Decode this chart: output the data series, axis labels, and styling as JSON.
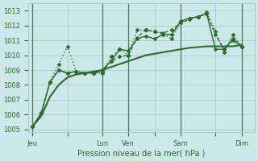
{
  "bg_color": "#cce8e8",
  "grid_color": "#aacccc",
  "line_color": "#2d6a2d",
  "xlabel": "Pression niveau de la mer( hPa )",
  "ylim": [
    1004.8,
    1013.5
  ],
  "yticks": [
    1005,
    1006,
    1007,
    1008,
    1009,
    1010,
    1011,
    1012,
    1013
  ],
  "xtick_labels": [
    "Jeu",
    "",
    "Lun",
    "Ven",
    "",
    "Sam",
    "",
    "Dim"
  ],
  "xtick_positions": [
    0,
    4,
    8,
    11,
    14,
    17,
    21,
    24
  ],
  "vlines": [
    0,
    8,
    11,
    17,
    24
  ],
  "xmax": 25,
  "series": [
    {
      "x": [
        0,
        1,
        2,
        3,
        4,
        5,
        6,
        7,
        8,
        9,
        10,
        11,
        12,
        13,
        14,
        15,
        16,
        17,
        18,
        19,
        20,
        21,
        22,
        23,
        24
      ],
      "y": [
        1005.2,
        1006.1,
        1008.2,
        1009.4,
        1010.6,
        1008.9,
        1008.8,
        1008.8,
        1008.8,
        1009.9,
        1010.4,
        1010.0,
        1011.7,
        1011.7,
        1011.6,
        1011.4,
        1011.1,
        1012.2,
        1012.5,
        1012.6,
        1012.9,
        1011.6,
        1010.2,
        1011.4,
        1010.6
      ],
      "linestyle": "dotted",
      "marker": "D",
      "markersize": 2.5,
      "linewidth": 1.0
    },
    {
      "x": [
        0,
        1,
        2,
        3,
        4,
        5,
        6,
        7,
        8,
        9,
        10,
        11,
        12,
        13,
        14,
        15,
        16,
        17,
        18,
        19,
        20,
        21,
        22,
        23,
        24
      ],
      "y": [
        1005.2,
        1006.1,
        1008.2,
        1009.0,
        1008.8,
        1008.9,
        1008.8,
        1008.8,
        1008.9,
        1009.6,
        1009.9,
        1010.0,
        1011.2,
        1011.7,
        1011.6,
        1011.5,
        1011.7,
        1012.2,
        1012.4,
        1012.6,
        1012.8,
        1011.4,
        1010.4,
        1011.0,
        1010.6
      ],
      "linestyle": "dashed",
      "marker": "D",
      "markersize": 2.5,
      "linewidth": 1.0
    },
    {
      "x": [
        0,
        1,
        2,
        3,
        4,
        5,
        6,
        7,
        8,
        9,
        10,
        11,
        12,
        13,
        14,
        15,
        16,
        17,
        18,
        19,
        20,
        21,
        22,
        23,
        24
      ],
      "y": [
        1005.2,
        1006.1,
        1008.2,
        1009.0,
        1008.8,
        1008.9,
        1008.8,
        1008.8,
        1009.0,
        1009.6,
        1010.4,
        1010.3,
        1011.1,
        1011.3,
        1011.1,
        1011.4,
        1011.4,
        1012.3,
        1012.5,
        1012.6,
        1012.8,
        1010.4,
        1010.4,
        1011.1,
        1010.6
      ],
      "linestyle": "solid",
      "marker": "D",
      "markersize": 2.5,
      "linewidth": 1.0
    },
    {
      "x": [
        0,
        1,
        2,
        3,
        4,
        5,
        6,
        7,
        8,
        9,
        10,
        11,
        12,
        13,
        14,
        15,
        16,
        17,
        18,
        19,
        20,
        21,
        22,
        23,
        24
      ],
      "y": [
        1005.2,
        1005.9,
        1007.2,
        1008.0,
        1008.5,
        1008.7,
        1008.8,
        1008.9,
        1009.0,
        1009.2,
        1009.4,
        1009.6,
        1009.8,
        1010.0,
        1010.1,
        1010.2,
        1010.3,
        1010.4,
        1010.5,
        1010.55,
        1010.6,
        1010.6,
        1010.6,
        1010.6,
        1010.7
      ],
      "linestyle": "solid",
      "marker": null,
      "markersize": 0,
      "linewidth": 1.5
    }
  ]
}
